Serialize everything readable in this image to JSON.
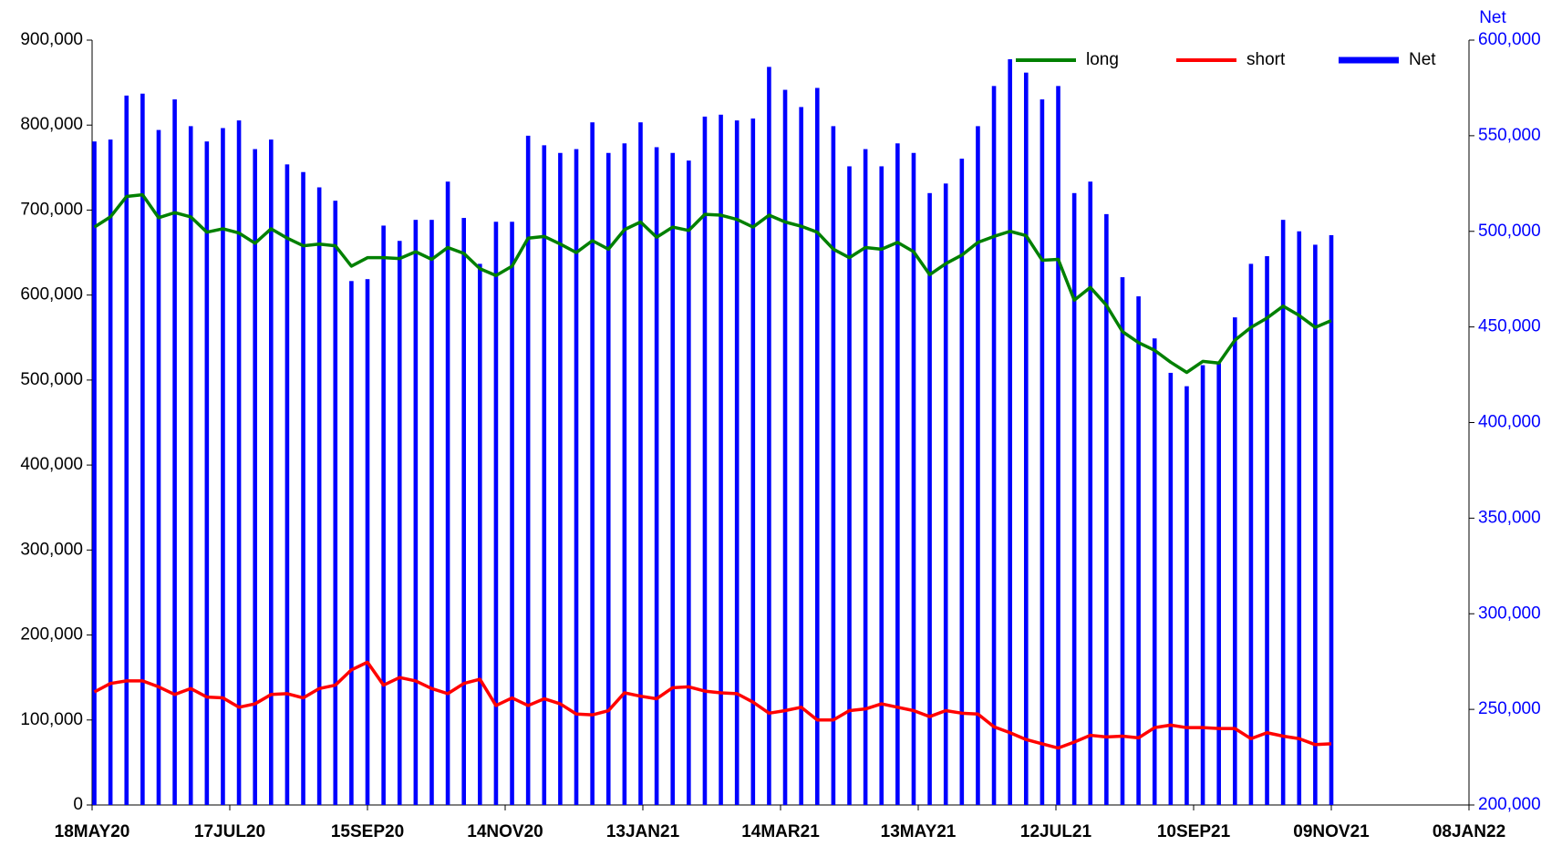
{
  "chart_data": {
    "type": "bar-line",
    "x": [
      "2020-05-19",
      "2020-05-26",
      "2020-06-02",
      "2020-06-09",
      "2020-06-16",
      "2020-06-23",
      "2020-06-30",
      "2020-07-07",
      "2020-07-14",
      "2020-07-21",
      "2020-07-28",
      "2020-08-04",
      "2020-08-11",
      "2020-08-18",
      "2020-08-25",
      "2020-09-01",
      "2020-09-08",
      "2020-09-15",
      "2020-09-22",
      "2020-09-29",
      "2020-10-06",
      "2020-10-13",
      "2020-10-20",
      "2020-10-27",
      "2020-11-03",
      "2020-11-10",
      "2020-11-17",
      "2020-11-24",
      "2020-12-01",
      "2020-12-08",
      "2020-12-15",
      "2020-12-22",
      "2020-12-29",
      "2021-01-05",
      "2021-01-12",
      "2021-01-19",
      "2021-01-26",
      "2021-02-02",
      "2021-02-09",
      "2021-02-16",
      "2021-02-23",
      "2021-03-02",
      "2021-03-09",
      "2021-03-16",
      "2021-03-23",
      "2021-03-30",
      "2021-04-06",
      "2021-04-13",
      "2021-04-20",
      "2021-04-27",
      "2021-05-04",
      "2021-05-11",
      "2021-05-18",
      "2021-05-25",
      "2021-06-01",
      "2021-06-08",
      "2021-06-15",
      "2021-06-22",
      "2021-06-29",
      "2021-07-06",
      "2021-07-13",
      "2021-07-20",
      "2021-07-27",
      "2021-08-03",
      "2021-08-10",
      "2021-08-17",
      "2021-08-24",
      "2021-08-31",
      "2021-09-07",
      "2021-09-14",
      "2021-09-21",
      "2021-09-28",
      "2021-10-05",
      "2021-10-12",
      "2021-10-19",
      "2021-10-26",
      "2021-11-02",
      "2021-11-09"
    ],
    "series": [
      {
        "name": "long",
        "color": "#008000",
        "type": "line",
        "values": [
          680000,
          692000,
          716000,
          718000,
          691000,
          697000,
          692000,
          674000,
          678000,
          673000,
          661000,
          678000,
          667000,
          658000,
          660000,
          658000,
          634000,
          644000,
          644000,
          643000,
          651000,
          642000,
          656000,
          649000,
          631000,
          623000,
          634000,
          667000,
          669000,
          660000,
          650000,
          664000,
          654000,
          677000,
          686000,
          668000,
          680000,
          676000,
          695000,
          694000,
          689000,
          680000,
          694000,
          686000,
          681000,
          674000,
          654000,
          644000,
          656000,
          654000,
          662000,
          651000,
          624000,
          637000,
          647000,
          662000,
          669000,
          675000,
          670000,
          641000,
          642000,
          594000,
          609000,
          588000,
          557000,
          544000,
          535000,
          521000,
          509000,
          522000,
          520000,
          547000,
          562000,
          573000,
          587000,
          576000,
          562000,
          570000
        ]
      },
      {
        "name": "short",
        "color": "#ff0000",
        "type": "line",
        "values": [
          133000,
          143000,
          146000,
          146000,
          139000,
          130000,
          137000,
          127000,
          126000,
          115000,
          119000,
          130000,
          131000,
          126000,
          137000,
          141000,
          159000,
          168000,
          141000,
          150000,
          146000,
          137000,
          131000,
          143000,
          148000,
          117000,
          126000,
          117000,
          125000,
          119000,
          107000,
          106000,
          111000,
          132000,
          128000,
          125000,
          138000,
          139000,
          134000,
          132000,
          131000,
          121000,
          108000,
          111000,
          115000,
          100000,
          100000,
          111000,
          113000,
          119000,
          115000,
          111000,
          104000,
          111000,
          108000,
          107000,
          92000,
          85000,
          77000,
          72000,
          67000,
          74000,
          82000,
          80000,
          81000,
          79000,
          91000,
          94000,
          91000,
          91000,
          90000,
          90000,
          78000,
          85000,
          81000,
          78000,
          71000,
          72000
        ]
      },
      {
        "name": "Net",
        "color": "#0000ff",
        "type": "bar",
        "axis": "y2",
        "values": [
          547000,
          548000,
          571000,
          572000,
          553000,
          569000,
          555000,
          547000,
          554000,
          558000,
          543000,
          548000,
          535000,
          531000,
          523000,
          516000,
          474000,
          475000,
          503000,
          495000,
          506000,
          506000,
          526000,
          507000,
          483000,
          505000,
          505000,
          550000,
          545000,
          541000,
          543000,
          557000,
          541000,
          546000,
          557000,
          544000,
          541000,
          537000,
          560000,
          561000,
          558000,
          559000,
          586000,
          574000,
          565000,
          575000,
          555000,
          534000,
          543000,
          534000,
          546000,
          541000,
          520000,
          525000,
          538000,
          555000,
          576000,
          590000,
          583000,
          569000,
          576000,
          520000,
          526000,
          509000,
          476000,
          466000,
          444000,
          426000,
          419000,
          430000,
          431000,
          455000,
          483000,
          487000,
          506000,
          500000,
          493000,
          498000
        ]
      }
    ],
    "xlim": [
      "2020-05-18",
      "2022-01-08"
    ],
    "xticks": [
      {
        "value": "2020-05-18",
        "label": "18MAY20"
      },
      {
        "value": "2020-07-17",
        "label": "17JUL20"
      },
      {
        "value": "2020-09-15",
        "label": "15SEP20"
      },
      {
        "value": "2020-11-14",
        "label": "14NOV20"
      },
      {
        "value": "2021-01-13",
        "label": "13JAN21"
      },
      {
        "value": "2021-03-14",
        "label": "14MAR21"
      },
      {
        "value": "2021-05-13",
        "label": "13MAY21"
      },
      {
        "value": "2021-07-12",
        "label": "12JUL21"
      },
      {
        "value": "2021-09-10",
        "label": "10SEP21"
      },
      {
        "value": "2021-11-09",
        "label": "09NOV21"
      },
      {
        "value": "2022-01-08",
        "label": "08JAN22"
      }
    ],
    "ylim": [
      0,
      900000
    ],
    "yticks": [
      0,
      {
        "value": 100000,
        "label": "100,000"
      },
      {
        "value": 200000,
        "label": "200,000"
      },
      {
        "value": 300000,
        "label": "300,000"
      },
      {
        "value": 400000,
        "label": "400,000"
      },
      {
        "value": 500000,
        "label": "500,000"
      },
      {
        "value": 600000,
        "label": "600,000"
      },
      {
        "value": 700000,
        "label": "700,000"
      },
      {
        "value": 800000,
        "label": "800,000"
      },
      {
        "value": 900000,
        "label": "900,000"
      }
    ],
    "y2label": "Net",
    "y2lim": [
      200000,
      600000
    ],
    "y2ticks": [
      {
        "value": 200000,
        "label": "200,000"
      },
      {
        "value": 250000,
        "label": "250,000"
      },
      {
        "value": 300000,
        "label": "300,000"
      },
      {
        "value": 350000,
        "label": "350,000"
      },
      {
        "value": 400000,
        "label": "400,000"
      },
      {
        "value": 450000,
        "label": "450,000"
      },
      {
        "value": 500000,
        "label": "500,000"
      },
      {
        "value": 550000,
        "label": "550,000"
      },
      {
        "value": 600000,
        "label": "600,000"
      }
    ],
    "y2color": "#0000ff",
    "legend": "top-right"
  }
}
